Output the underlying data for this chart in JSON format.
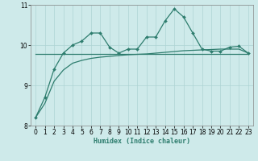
{
  "x": [
    0,
    1,
    2,
    3,
    4,
    5,
    6,
    7,
    8,
    9,
    10,
    11,
    12,
    13,
    14,
    15,
    16,
    17,
    18,
    19,
    20,
    21,
    22,
    23
  ],
  "line_jagged": [
    8.2,
    8.7,
    9.4,
    9.8,
    10.0,
    10.1,
    10.3,
    10.3,
    9.95,
    9.8,
    9.9,
    9.9,
    10.2,
    10.2,
    10.6,
    10.9,
    10.7,
    10.3,
    9.9,
    9.85,
    9.85,
    9.95,
    9.97,
    9.8
  ],
  "line_rising": [
    8.2,
    8.55,
    9.1,
    9.38,
    9.55,
    9.62,
    9.67,
    9.7,
    9.72,
    9.74,
    9.76,
    9.77,
    9.78,
    9.8,
    9.82,
    9.84,
    9.86,
    9.87,
    9.88,
    9.89,
    9.9,
    9.9,
    9.9,
    9.8
  ],
  "line_flat": [
    9.79,
    9.79,
    9.79,
    9.79,
    9.79,
    9.79,
    9.79,
    9.79,
    9.79,
    9.79,
    9.79,
    9.79,
    9.79,
    9.79,
    9.79,
    9.79,
    9.79,
    9.79,
    9.79,
    9.79,
    9.79,
    9.79,
    9.79,
    9.79
  ],
  "line_color": "#2e7d6e",
  "bg_color": "#ceeaea",
  "grid_color": "#aed4d4",
  "xlabel": "Humidex (Indice chaleur)",
  "ylim": [
    8.0,
    11.0
  ],
  "xlim": [
    -0.5,
    23.5
  ],
  "yticks": [
    8,
    9,
    10,
    11
  ],
  "xticks": [
    0,
    1,
    2,
    3,
    4,
    5,
    6,
    7,
    8,
    9,
    10,
    11,
    12,
    13,
    14,
    15,
    16,
    17,
    18,
    19,
    20,
    21,
    22,
    23
  ],
  "xlabel_fontsize": 6.0,
  "tick_fontsize": 5.5
}
